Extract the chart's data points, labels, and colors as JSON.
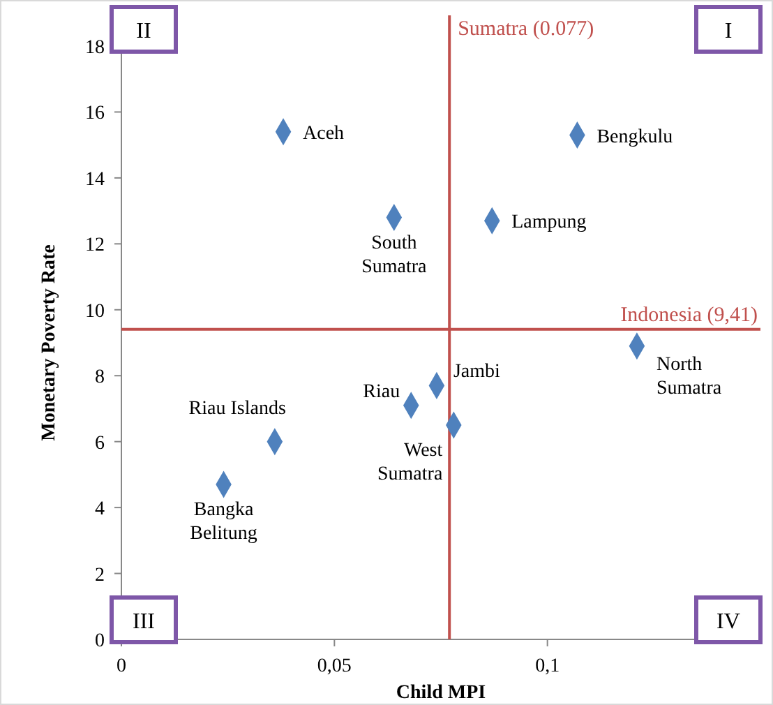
{
  "chart_data": {
    "type": "scatter",
    "xlabel": "Child MPI",
    "ylabel": "Monetary Poverty Rate",
    "x": [
      0.038,
      0.107,
      0.064,
      0.087,
      0.121,
      0.074,
      0.068,
      0.078,
      0.036,
      0.024
    ],
    "series": [
      {
        "color": "#4f81bd",
        "values": [
          15.4,
          15.3,
          12.8,
          12.7,
          8.9,
          7.7,
          7.1,
          6.5,
          6.0,
          4.7
        ]
      }
    ],
    "xlim": [
      0,
      0.15
    ],
    "xticks": [
      0,
      {
        "value": 0.05,
        "label": "0,05"
      },
      {
        "value": 0.1,
        "label": "0,1"
      }
    ],
    "ylim": [
      0,
      18
    ],
    "yticks": [
      0,
      2,
      4,
      6,
      8,
      10,
      12,
      14,
      16,
      18
    ],
    "marker": "diamond",
    "grid": false,
    "ref_lines": [
      {
        "axis": "x",
        "value": 0.077,
        "label": "Sumatra (0.077)",
        "color": "#c0504d"
      },
      {
        "axis": "y",
        "value": 9.41,
        "label": "Indonesia (9,41)",
        "color": "#c0504d"
      }
    ],
    "annotations": [
      "I",
      "II",
      "III",
      "IV",
      {
        "text": "Aceh",
        "x": 0.038,
        "y": 15.4
      },
      {
        "text": "Bengkulu",
        "x": 0.107,
        "y": 15.3
      },
      {
        "text": "South\nSumatra",
        "x": 0.064,
        "y": 12.8
      },
      {
        "text": "Lampung",
        "x": 0.087,
        "y": 12.7
      },
      {
        "text": "North\nSumatra",
        "x": 0.121,
        "y": 8.9
      },
      {
        "text": "Jambi",
        "x": 0.074,
        "y": 7.7
      },
      {
        "text": "Riau",
        "x": 0.068,
        "y": 7.1
      },
      {
        "text": "West\nSumatra",
        "x": 0.078,
        "y": 6.5
      },
      {
        "text": "Riau Islands",
        "x": 0.036,
        "y": 6.0
      },
      {
        "text": "Bangka\nBelitung",
        "x": 0.024,
        "y": 4.7
      }
    ]
  }
}
